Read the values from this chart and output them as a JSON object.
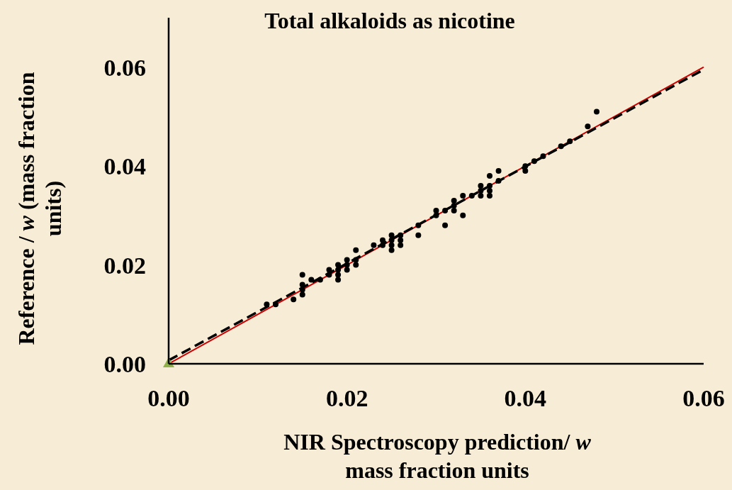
{
  "chart_data": {
    "type": "scatter",
    "title": "Total alkaloids as nicotine",
    "xlabel": "NIR Spectroscopy prediction/ w mass fraction units",
    "ylabel": "Reference / w (mass fraction units)",
    "xlim": [
      0,
      0.06
    ],
    "ylim": [
      0,
      0.07
    ],
    "xticks": [
      {
        "value": 0,
        "label": "0.00"
      },
      {
        "value": 0.02,
        "label": "0.02"
      },
      {
        "value": 0.04,
        "label": "0.04"
      },
      {
        "value": 0.06,
        "label": "0.06"
      }
    ],
    "yticks": [
      {
        "value": 0,
        "label": "0.00"
      },
      {
        "value": 0.02,
        "label": "0.02"
      },
      {
        "value": 0.04,
        "label": "0.04"
      },
      {
        "value": 0.06,
        "label": "0.06"
      }
    ],
    "grid": false,
    "series": [
      {
        "type": "line",
        "color": "#cc0000",
        "line_style": "solid",
        "x": [
          0,
          0.06
        ],
        "values": [
          0,
          0.06
        ]
      },
      {
        "type": "line",
        "color": "#000000",
        "line_style": "dashed",
        "x": [
          0,
          0.06
        ],
        "values": [
          0.0007,
          0.0595
        ]
      },
      {
        "color": "#000000",
        "marker": "circle",
        "x": [
          0.011,
          0.012,
          0.014,
          0.015,
          0.015,
          0.015,
          0.015,
          0.016,
          0.017,
          0.018,
          0.018,
          0.019,
          0.019,
          0.019,
          0.019,
          0.02,
          0.02,
          0.02,
          0.021,
          0.021,
          0.021,
          0.023,
          0.024,
          0.024,
          0.025,
          0.025,
          0.025,
          0.025,
          0.026,
          0.026,
          0.026,
          0.028,
          0.028,
          0.03,
          0.03,
          0.031,
          0.031,
          0.032,
          0.032,
          0.032,
          0.033,
          0.033,
          0.034,
          0.035,
          0.035,
          0.035,
          0.036,
          0.036,
          0.036,
          0.036,
          0.037,
          0.037,
          0.04,
          0.04,
          0.041,
          0.042,
          0.044,
          0.045,
          0.047,
          0.048
        ],
        "values": [
          0.012,
          0.012,
          0.013,
          0.014,
          0.015,
          0.016,
          0.018,
          0.017,
          0.017,
          0.018,
          0.019,
          0.017,
          0.018,
          0.019,
          0.02,
          0.019,
          0.02,
          0.021,
          0.02,
          0.021,
          0.023,
          0.024,
          0.024,
          0.025,
          0.023,
          0.024,
          0.025,
          0.026,
          0.024,
          0.025,
          0.026,
          0.026,
          0.028,
          0.03,
          0.031,
          0.028,
          0.031,
          0.031,
          0.032,
          0.033,
          0.03,
          0.034,
          0.034,
          0.034,
          0.035,
          0.036,
          0.034,
          0.035,
          0.036,
          0.038,
          0.037,
          0.039,
          0.039,
          0.04,
          0.041,
          0.042,
          0.044,
          0.045,
          0.048,
          0.051
        ]
      },
      {
        "color": "#8fb04a",
        "marker": "triangle",
        "x": [
          0
        ],
        "values": [
          0
        ]
      }
    ]
  }
}
